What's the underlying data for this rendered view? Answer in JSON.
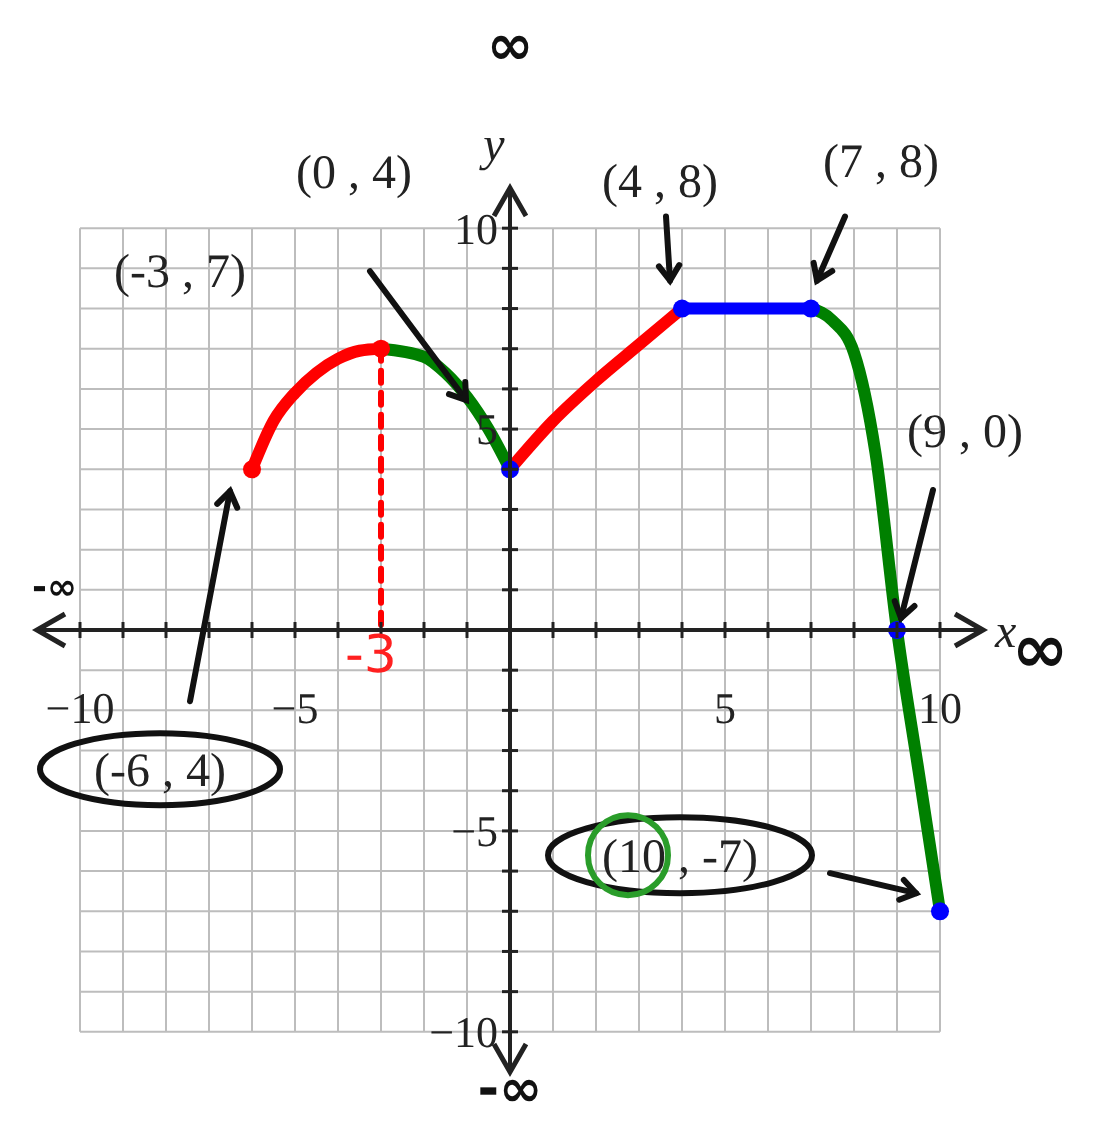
{
  "chart_data": {
    "type": "line",
    "xlabel": "x",
    "ylabel": "y",
    "xlim": [
      -11,
      11
    ],
    "ylim": [
      -11,
      11
    ],
    "xticks": [
      {
        "value": -10,
        "label": "−10"
      },
      {
        "value": -9,
        "label": null
      },
      {
        "value": -8,
        "label": null
      },
      {
        "value": -7,
        "label": null
      },
      {
        "value": -6,
        "label": null
      },
      {
        "value": -5,
        "label": "−5"
      },
      {
        "value": -4,
        "label": null
      },
      {
        "value": -3,
        "label": null
      },
      {
        "value": -2,
        "label": null
      },
      {
        "value": -1,
        "label": null
      },
      {
        "value": 0,
        "label": null
      },
      {
        "value": 1,
        "label": null
      },
      {
        "value": 2,
        "label": null
      },
      {
        "value": 3,
        "label": null
      },
      {
        "value": 4,
        "label": null
      },
      5,
      {
        "value": 6,
        "label": null
      },
      {
        "value": 7,
        "label": null
      },
      {
        "value": 8,
        "label": null
      },
      {
        "value": 9,
        "label": null
      },
      10
    ],
    "yticks": [
      {
        "value": -10,
        "label": "−10"
      },
      {
        "value": -9,
        "label": null
      },
      {
        "value": -8,
        "label": null
      },
      {
        "value": -7,
        "label": null
      },
      {
        "value": -6,
        "label": null
      },
      {
        "value": -5,
        "label": "−5"
      },
      {
        "value": -4,
        "label": null
      },
      {
        "value": -3,
        "label": null
      },
      {
        "value": -2,
        "label": null
      },
      {
        "value": -1,
        "label": null
      },
      {
        "value": 0,
        "label": null
      },
      {
        "value": 1,
        "label": null
      },
      {
        "value": 2,
        "label": null
      },
      {
        "value": 3,
        "label": null
      },
      {
        "value": 4,
        "label": null
      },
      5,
      {
        "value": 6,
        "label": null
      },
      {
        "value": 7,
        "label": null
      },
      {
        "value": 8,
        "label": null
      },
      {
        "value": 9,
        "label": null
      },
      10
    ],
    "grid": true,
    "marker": "none",
    "line_style": "solid",
    "series": [
      {
        "color": "#ff0000",
        "x": [
          -6,
          -5.5,
          -5,
          -4.5,
          -4,
          -3.5,
          -3
        ],
        "values": [
          4,
          5.2,
          5.9,
          6.4,
          6.75,
          6.95,
          7
        ]
      },
      {
        "color": "#008000",
        "x": [
          -3,
          -2,
          -1.5,
          -1,
          -0.5,
          0
        ],
        "values": [
          7,
          6.8,
          6.4,
          5.8,
          5,
          4
        ]
      },
      {
        "color": "#ff0000",
        "x": [
          0,
          1,
          2,
          3,
          4
        ],
        "values": [
          4,
          5.2,
          6.2,
          7.1,
          8
        ]
      },
      {
        "color": "#0000ff",
        "x": [
          4,
          7
        ],
        "values": [
          8,
          8
        ]
      },
      {
        "color": "#008000",
        "x": [
          7,
          7.5,
          8,
          8.5,
          9,
          9.5,
          10
        ],
        "values": [
          8,
          7.7,
          6.9,
          4.4,
          0,
          -3.5,
          -7
        ]
      },
      {
        "color": "#ff0000",
        "line_style": "dashed",
        "x": [
          -3,
          -3
        ],
        "values": [
          7,
          0
        ]
      },
      {
        "type": "scatter",
        "marker": "circle",
        "x": [
          -6,
          -3,
          0,
          4,
          7,
          9,
          10
        ],
        "values": [
          4,
          7,
          4,
          8,
          8,
          0,
          -7
        ],
        "colors": [
          "#ff0000",
          "#ff0000",
          "#0000ff",
          "#0000ff",
          "#0000ff",
          "#0000ff",
          "#0000ff"
        ]
      }
    ],
    "annotations": [
      "(0 , 4)",
      "(-3 , 7)",
      {
        "text": "(4 , 8)",
        "x": 4,
        "y": 8
      },
      {
        "text": "(7 , 8)",
        "x": 7,
        "y": 8
      },
      {
        "text": "(9 , 0)",
        "x": 9,
        "y": 0
      },
      "(-6 , 4)",
      "(10 , -7)",
      {
        "text": "-3",
        "x": -3,
        "y": 0
      },
      "∞",
      "-∞",
      "-∞",
      "∞"
    ]
  }
}
